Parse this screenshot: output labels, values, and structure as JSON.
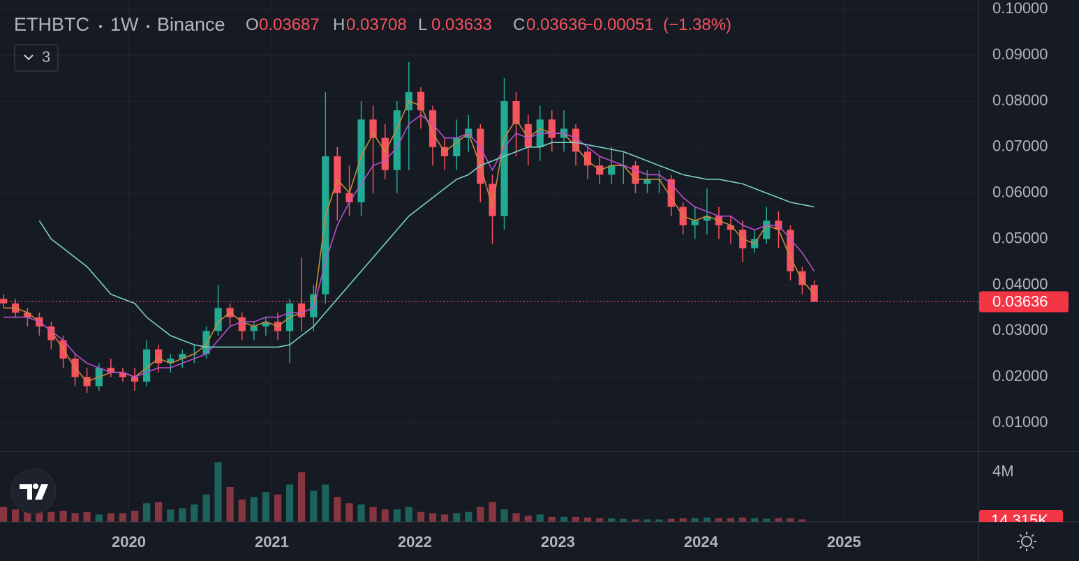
{
  "chart_data": {
    "type": "candlestick",
    "header": {
      "symbol": "ETHBTC",
      "interval": "1W",
      "exchange": "Binance",
      "ohlc": [
        {
          "letter": "O",
          "value": "0.03687"
        },
        {
          "letter": "H",
          "value": "0.03708"
        },
        {
          "letter": "L",
          "value": "0.03633"
        },
        {
          "letter": "C",
          "value": "0.03636"
        }
      ],
      "change": "−0.00051",
      "change_pct": "(−1.38%)"
    },
    "indicator_count": "3",
    "x": [
      2019.125,
      2019.208,
      2019.292,
      2019.375,
      2019.458,
      2019.542,
      2019.625,
      2019.708,
      2019.792,
      2019.875,
      2019.958,
      2020.042,
      2020.125,
      2020.208,
      2020.292,
      2020.375,
      2020.458,
      2020.542,
      2020.625,
      2020.708,
      2020.792,
      2020.875,
      2020.958,
      2021.042,
      2021.125,
      2021.208,
      2021.292,
      2021.375,
      2021.458,
      2021.542,
      2021.625,
      2021.708,
      2021.792,
      2021.875,
      2021.958,
      2022.042,
      2022.125,
      2022.208,
      2022.292,
      2022.375,
      2022.458,
      2022.542,
      2022.625,
      2022.708,
      2022.792,
      2022.875,
      2022.958,
      2023.042,
      2023.125,
      2023.208,
      2023.292,
      2023.375,
      2023.458,
      2023.542,
      2023.625,
      2023.708,
      2023.792,
      2023.875,
      2023.958,
      2024.042,
      2024.125,
      2024.208,
      2024.292,
      2024.375,
      2024.458,
      2024.542,
      2024.625,
      2024.708,
      2024.792
    ],
    "open": [
      0.037,
      0.036,
      0.034,
      0.033,
      0.031,
      0.028,
      0.024,
      0.02,
      0.018,
      0.022,
      0.021,
      0.02,
      0.019,
      0.026,
      0.023,
      0.024,
      0.025,
      0.025,
      0.03,
      0.035,
      0.033,
      0.03,
      0.031,
      0.032,
      0.03,
      0.036,
      0.033,
      0.038,
      0.068,
      0.06,
      0.058,
      0.076,
      0.072,
      0.065,
      0.078,
      0.082,
      0.078,
      0.07,
      0.068,
      0.072,
      0.074,
      0.062,
      0.055,
      0.08,
      0.075,
      0.07,
      0.076,
      0.072,
      0.074,
      0.069,
      0.066,
      0.064,
      0.066,
      0.066,
      0.062,
      0.063,
      0.063,
      0.057,
      0.053,
      0.054,
      0.055,
      0.053,
      0.052,
      0.048,
      0.05,
      0.054,
      0.052,
      0.043,
      0.04
    ],
    "high": [
      0.038,
      0.037,
      0.035,
      0.034,
      0.032,
      0.029,
      0.025,
      0.022,
      0.023,
      0.024,
      0.022,
      0.022,
      0.028,
      0.027,
      0.025,
      0.026,
      0.027,
      0.031,
      0.04,
      0.036,
      0.034,
      0.032,
      0.033,
      0.034,
      0.037,
      0.046,
      0.04,
      0.082,
      0.07,
      0.066,
      0.08,
      0.079,
      0.075,
      0.08,
      0.0885,
      0.083,
      0.079,
      0.072,
      0.076,
      0.077,
      0.075,
      0.064,
      0.085,
      0.082,
      0.077,
      0.079,
      0.078,
      0.078,
      0.075,
      0.07,
      0.068,
      0.07,
      0.069,
      0.067,
      0.065,
      0.065,
      0.064,
      0.058,
      0.057,
      0.061,
      0.057,
      0.055,
      0.054,
      0.052,
      0.057,
      0.056,
      0.053,
      0.044,
      0.041
    ],
    "low": [
      0.035,
      0.033,
      0.031,
      0.029,
      0.026,
      0.022,
      0.018,
      0.0165,
      0.017,
      0.02,
      0.019,
      0.017,
      0.018,
      0.021,
      0.021,
      0.022,
      0.023,
      0.024,
      0.029,
      0.031,
      0.028,
      0.028,
      0.029,
      0.028,
      0.023,
      0.03,
      0.03,
      0.036,
      0.054,
      0.055,
      0.055,
      0.06,
      0.063,
      0.06,
      0.065,
      0.074,
      0.066,
      0.065,
      0.065,
      0.069,
      0.058,
      0.049,
      0.052,
      0.068,
      0.066,
      0.067,
      0.069,
      0.069,
      0.066,
      0.063,
      0.062,
      0.062,
      0.062,
      0.06,
      0.06,
      0.06,
      0.055,
      0.051,
      0.05,
      0.051,
      0.05,
      0.049,
      0.045,
      0.047,
      0.049,
      0.048,
      0.041,
      0.038,
      0.0363
    ],
    "close": [
      0.036,
      0.034,
      0.033,
      0.031,
      0.028,
      0.024,
      0.02,
      0.018,
      0.022,
      0.021,
      0.02,
      0.019,
      0.026,
      0.023,
      0.024,
      0.025,
      0.025,
      0.03,
      0.035,
      0.033,
      0.03,
      0.031,
      0.032,
      0.03,
      0.036,
      0.033,
      0.038,
      0.068,
      0.06,
      0.058,
      0.076,
      0.072,
      0.065,
      0.078,
      0.082,
      0.078,
      0.07,
      0.068,
      0.072,
      0.074,
      0.062,
      0.055,
      0.08,
      0.075,
      0.07,
      0.076,
      0.072,
      0.074,
      0.069,
      0.066,
      0.064,
      0.066,
      0.066,
      0.062,
      0.063,
      0.063,
      0.057,
      0.053,
      0.054,
      0.055,
      0.053,
      0.052,
      0.048,
      0.05,
      0.054,
      0.052,
      0.043,
      0.04,
      0.03636
    ],
    "volume": [
      1200000,
      1000000,
      900000,
      1000000,
      800000,
      900000,
      700000,
      800000,
      600000,
      700000,
      700000,
      900000,
      1500000,
      1600000,
      1000000,
      1100000,
      1400000,
      2200000,
      4800000,
      2800000,
      1800000,
      2000000,
      2400000,
      2200000,
      3000000,
      4000000,
      2500000,
      3000000,
      2000000,
      1500000,
      1400000,
      1200000,
      1000000,
      1000000,
      1200000,
      800000,
      700000,
      600000,
      700000,
      800000,
      1200000,
      1600000,
      1000000,
      700000,
      500000,
      600000,
      400000,
      400000,
      400000,
      350000,
      300000,
      300000,
      250000,
      200000,
      200000,
      200000,
      250000,
      300000,
      300000,
      350000,
      300000,
      300000,
      350000,
      300000,
      250000,
      300000,
      300000,
      200000,
      14315
    ],
    "up_color": "#22ab94",
    "down_color": "#f7525f",
    "moving_averages": [
      {
        "color": "#c8893a",
        "values": [
          0.035,
          0.035,
          0.034,
          0.032,
          0.03,
          0.026,
          0.022,
          0.019,
          0.02,
          0.021,
          0.021,
          0.02,
          0.022,
          0.024,
          0.023,
          0.024,
          0.025,
          0.027,
          0.032,
          0.034,
          0.032,
          0.031,
          0.032,
          0.031,
          0.033,
          0.034,
          0.035,
          0.055,
          0.063,
          0.06,
          0.068,
          0.073,
          0.069,
          0.074,
          0.08,
          0.079,
          0.073,
          0.069,
          0.071,
          0.073,
          0.066,
          0.057,
          0.072,
          0.076,
          0.072,
          0.074,
          0.073,
          0.073,
          0.07,
          0.067,
          0.065,
          0.066,
          0.066,
          0.063,
          0.063,
          0.063,
          0.059,
          0.055,
          0.054,
          0.055,
          0.054,
          0.053,
          0.05,
          0.049,
          0.053,
          0.052,
          0.046,
          0.041,
          0.038
        ]
      },
      {
        "color": "#b84fd1",
        "values": [
          0.033,
          0.033,
          0.033,
          0.032,
          0.03,
          0.028,
          0.025,
          0.023,
          0.022,
          0.021,
          0.021,
          0.02,
          0.021,
          0.022,
          0.022,
          0.023,
          0.024,
          0.025,
          0.028,
          0.031,
          0.032,
          0.032,
          0.033,
          0.033,
          0.034,
          0.034,
          0.035,
          0.045,
          0.053,
          0.058,
          0.062,
          0.066,
          0.067,
          0.07,
          0.075,
          0.077,
          0.075,
          0.072,
          0.072,
          0.073,
          0.07,
          0.065,
          0.07,
          0.073,
          0.072,
          0.073,
          0.073,
          0.073,
          0.072,
          0.07,
          0.068,
          0.067,
          0.066,
          0.065,
          0.064,
          0.064,
          0.062,
          0.059,
          0.057,
          0.056,
          0.055,
          0.055,
          0.053,
          0.052,
          0.053,
          0.053,
          0.05,
          0.047,
          0.043
        ]
      },
      {
        "color": "#7ad1c6",
        "values": [
          null,
          null,
          null,
          0.054,
          0.05,
          0.048,
          0.046,
          0.044,
          0.041,
          0.038,
          0.037,
          0.036,
          0.033,
          0.031,
          0.029,
          0.028,
          0.027,
          0.0265,
          0.0265,
          0.0265,
          0.0265,
          0.0265,
          0.0265,
          0.0265,
          0.027,
          0.029,
          0.031,
          0.034,
          0.037,
          0.04,
          0.043,
          0.046,
          0.049,
          0.052,
          0.055,
          0.057,
          0.059,
          0.061,
          0.063,
          0.064,
          0.066,
          0.067,
          0.068,
          0.069,
          0.07,
          0.07,
          0.071,
          0.071,
          0.071,
          0.0705,
          0.07,
          0.0695,
          0.069,
          0.068,
          0.067,
          0.066,
          0.065,
          0.064,
          0.0635,
          0.063,
          0.063,
          0.0625,
          0.062,
          0.061,
          0.06,
          0.059,
          0.058,
          0.0575,
          0.057
        ]
      }
    ],
    "xlim": [
      2019.1,
      2025.94
    ],
    "xticks": [
      2020,
      2021,
      2022,
      2023,
      2024,
      2025
    ],
    "ylim": [
      0.0038,
      0.102
    ],
    "yticks": [
      {
        "value": 0.01,
        "label": "0.01000"
      },
      {
        "value": 0.02,
        "label": "0.02000"
      },
      {
        "value": 0.03,
        "label": "0.03000"
      },
      {
        "value": 0.04,
        "label": "0.04000"
      },
      {
        "value": 0.05,
        "label": "0.05000"
      },
      {
        "value": 0.06,
        "label": "0.06000"
      },
      {
        "value": 0.07,
        "label": "0.07000"
      },
      {
        "value": 0.08,
        "label": "0.08000"
      },
      {
        "value": 0.09,
        "label": "0.09000"
      },
      {
        "value": 0.1,
        "label": "0.10000"
      }
    ],
    "last_price": {
      "value": 0.03636,
      "label": "0.03636"
    },
    "y2lim": [
      0,
      5600000
    ],
    "y2ticks": [
      {
        "value": 4000000,
        "label": "4M"
      }
    ],
    "last_volume": {
      "value": 14315,
      "label": "14.315K"
    },
    "grid": true
  }
}
